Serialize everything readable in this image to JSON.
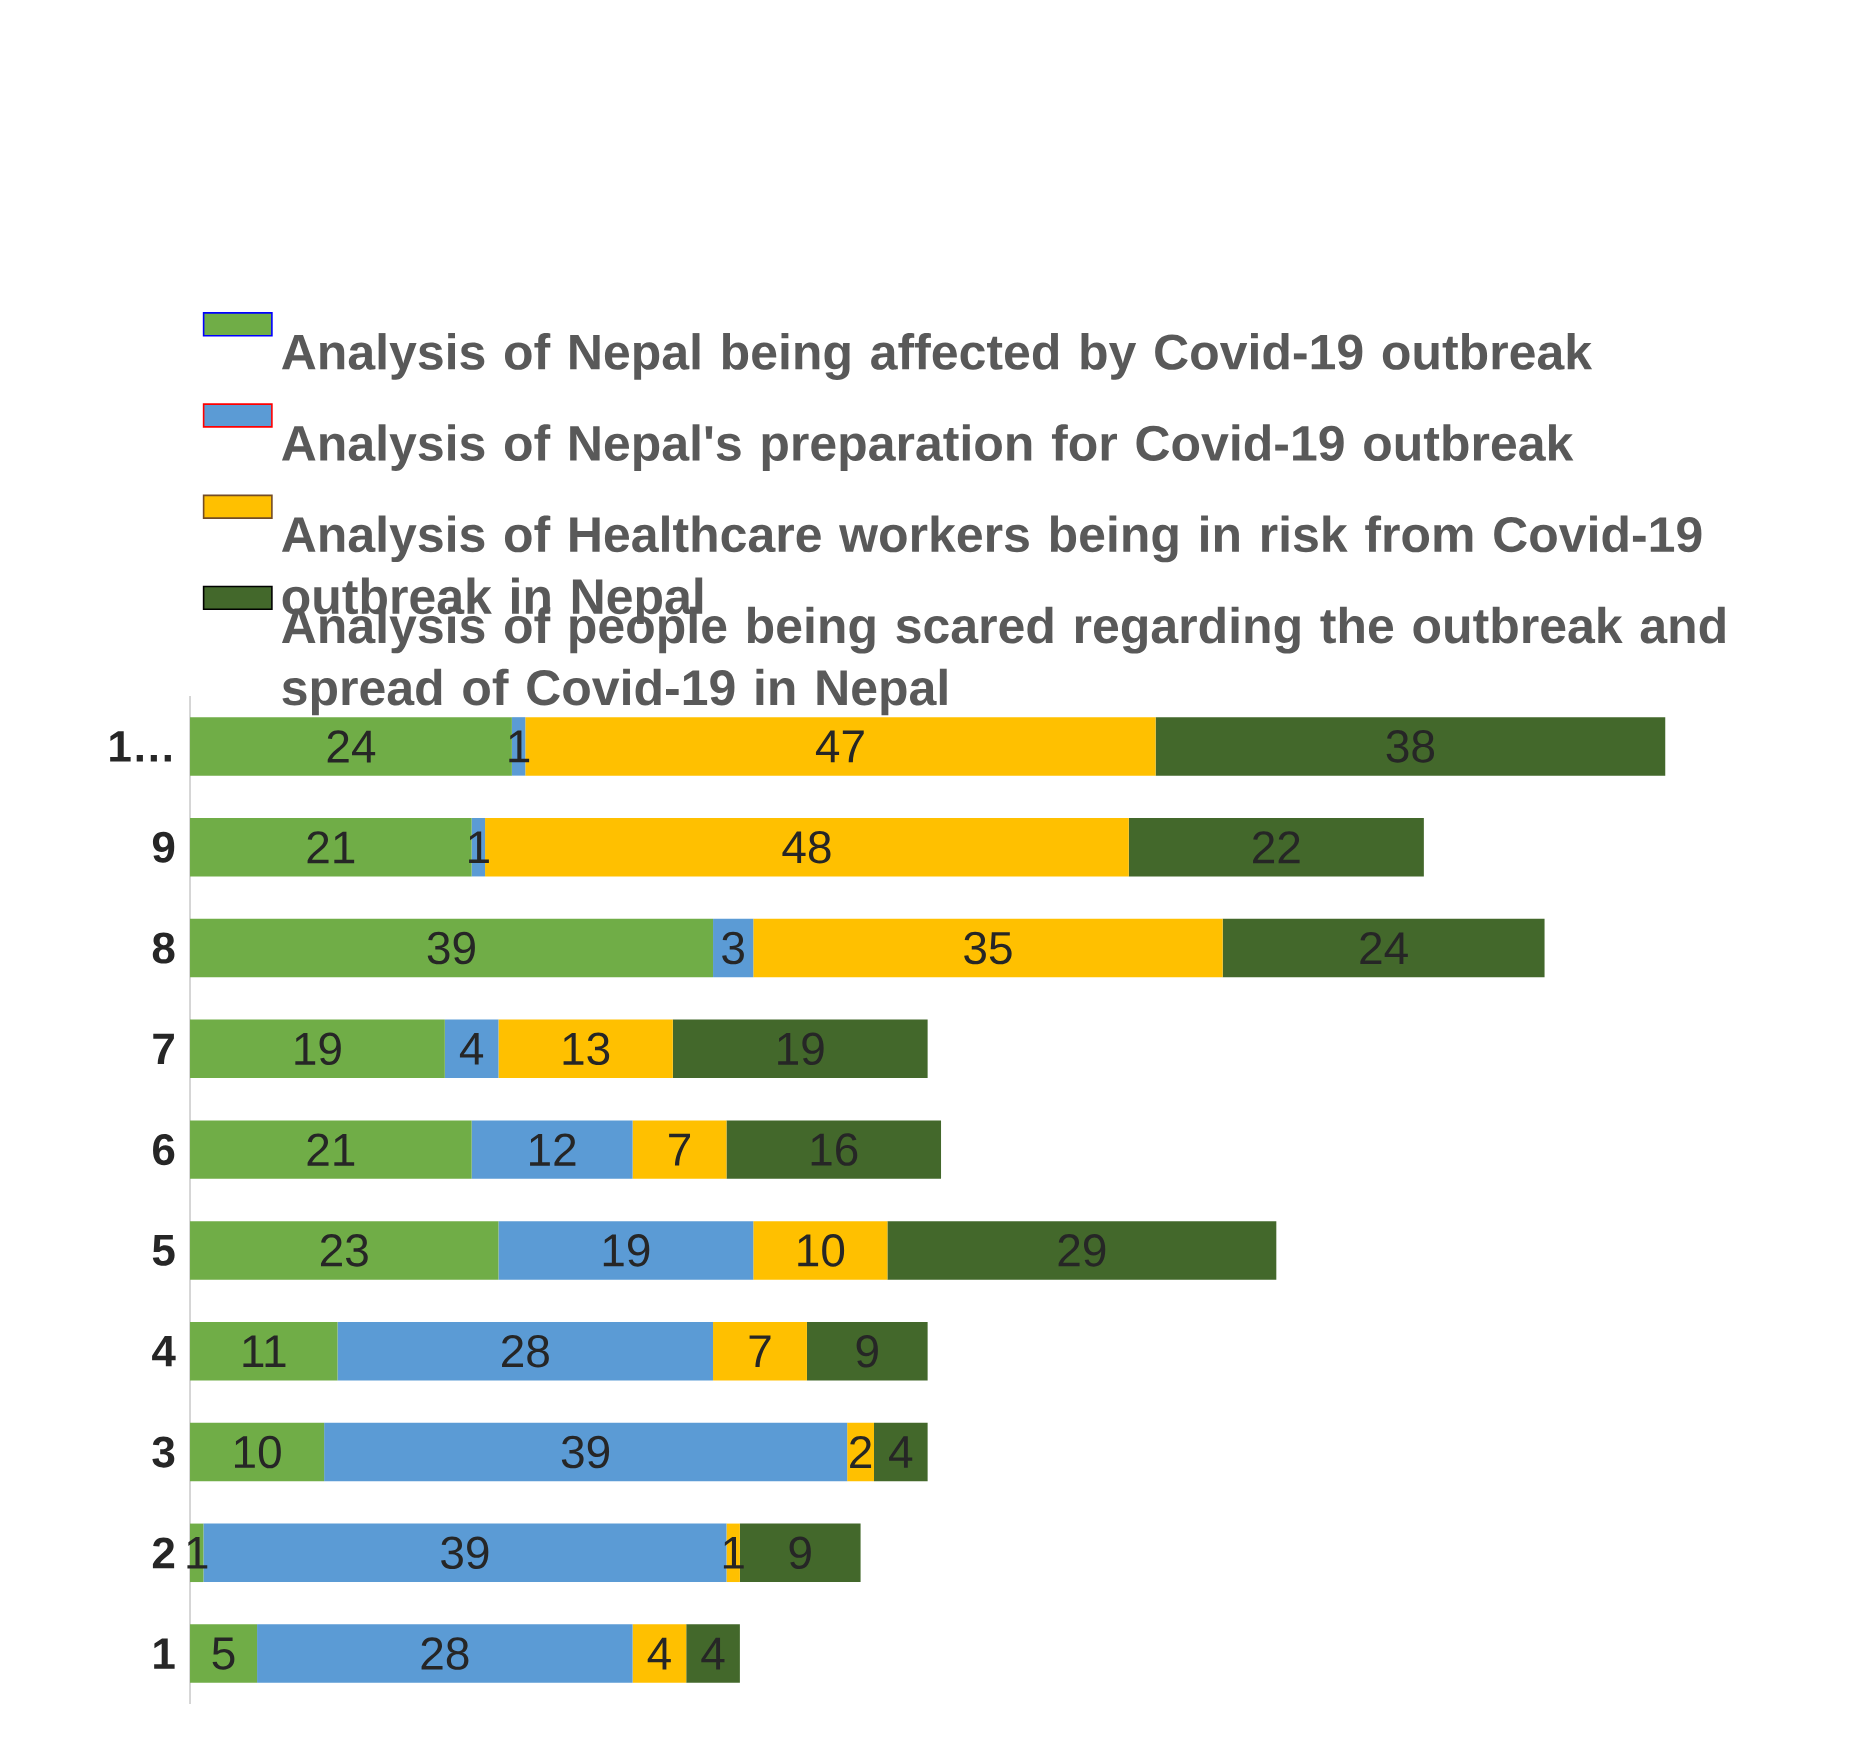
{
  "chart_data": {
    "type": "bar",
    "orientation": "horizontal",
    "stacked": true,
    "data_labels": true,
    "legend": "top",
    "categories": [
      "1…",
      "9",
      "8",
      "7",
      "6",
      "5",
      "4",
      "3",
      "2",
      "1"
    ],
    "series": [
      {
        "name": "Analysis of Nepal being affected by Covid-19 outbreak",
        "color": "#70ad47",
        "values": [
          24,
          21,
          39,
          19,
          21,
          23,
          11,
          10,
          1,
          5
        ]
      },
      {
        "name": "Analysis of Nepal's preparation for Covid-19 outbreak",
        "color": "#5b9bd5",
        "values": [
          1,
          1,
          3,
          4,
          12,
          19,
          28,
          39,
          39,
          28
        ]
      },
      {
        "name": "Analysis of Healthcare workers being in risk from Covid-19 outbreak in Nepal",
        "color": "#ffc000",
        "values": [
          47,
          48,
          35,
          13,
          7,
          10,
          7,
          2,
          1,
          4
        ]
      },
      {
        "name": "Analysis of  people being scared  regarding the outbreak and spread of Covid-19 in Nepal",
        "color": "#43682b",
        "values": [
          38,
          22,
          24,
          19,
          16,
          29,
          9,
          4,
          9,
          4
        ]
      }
    ]
  }
}
